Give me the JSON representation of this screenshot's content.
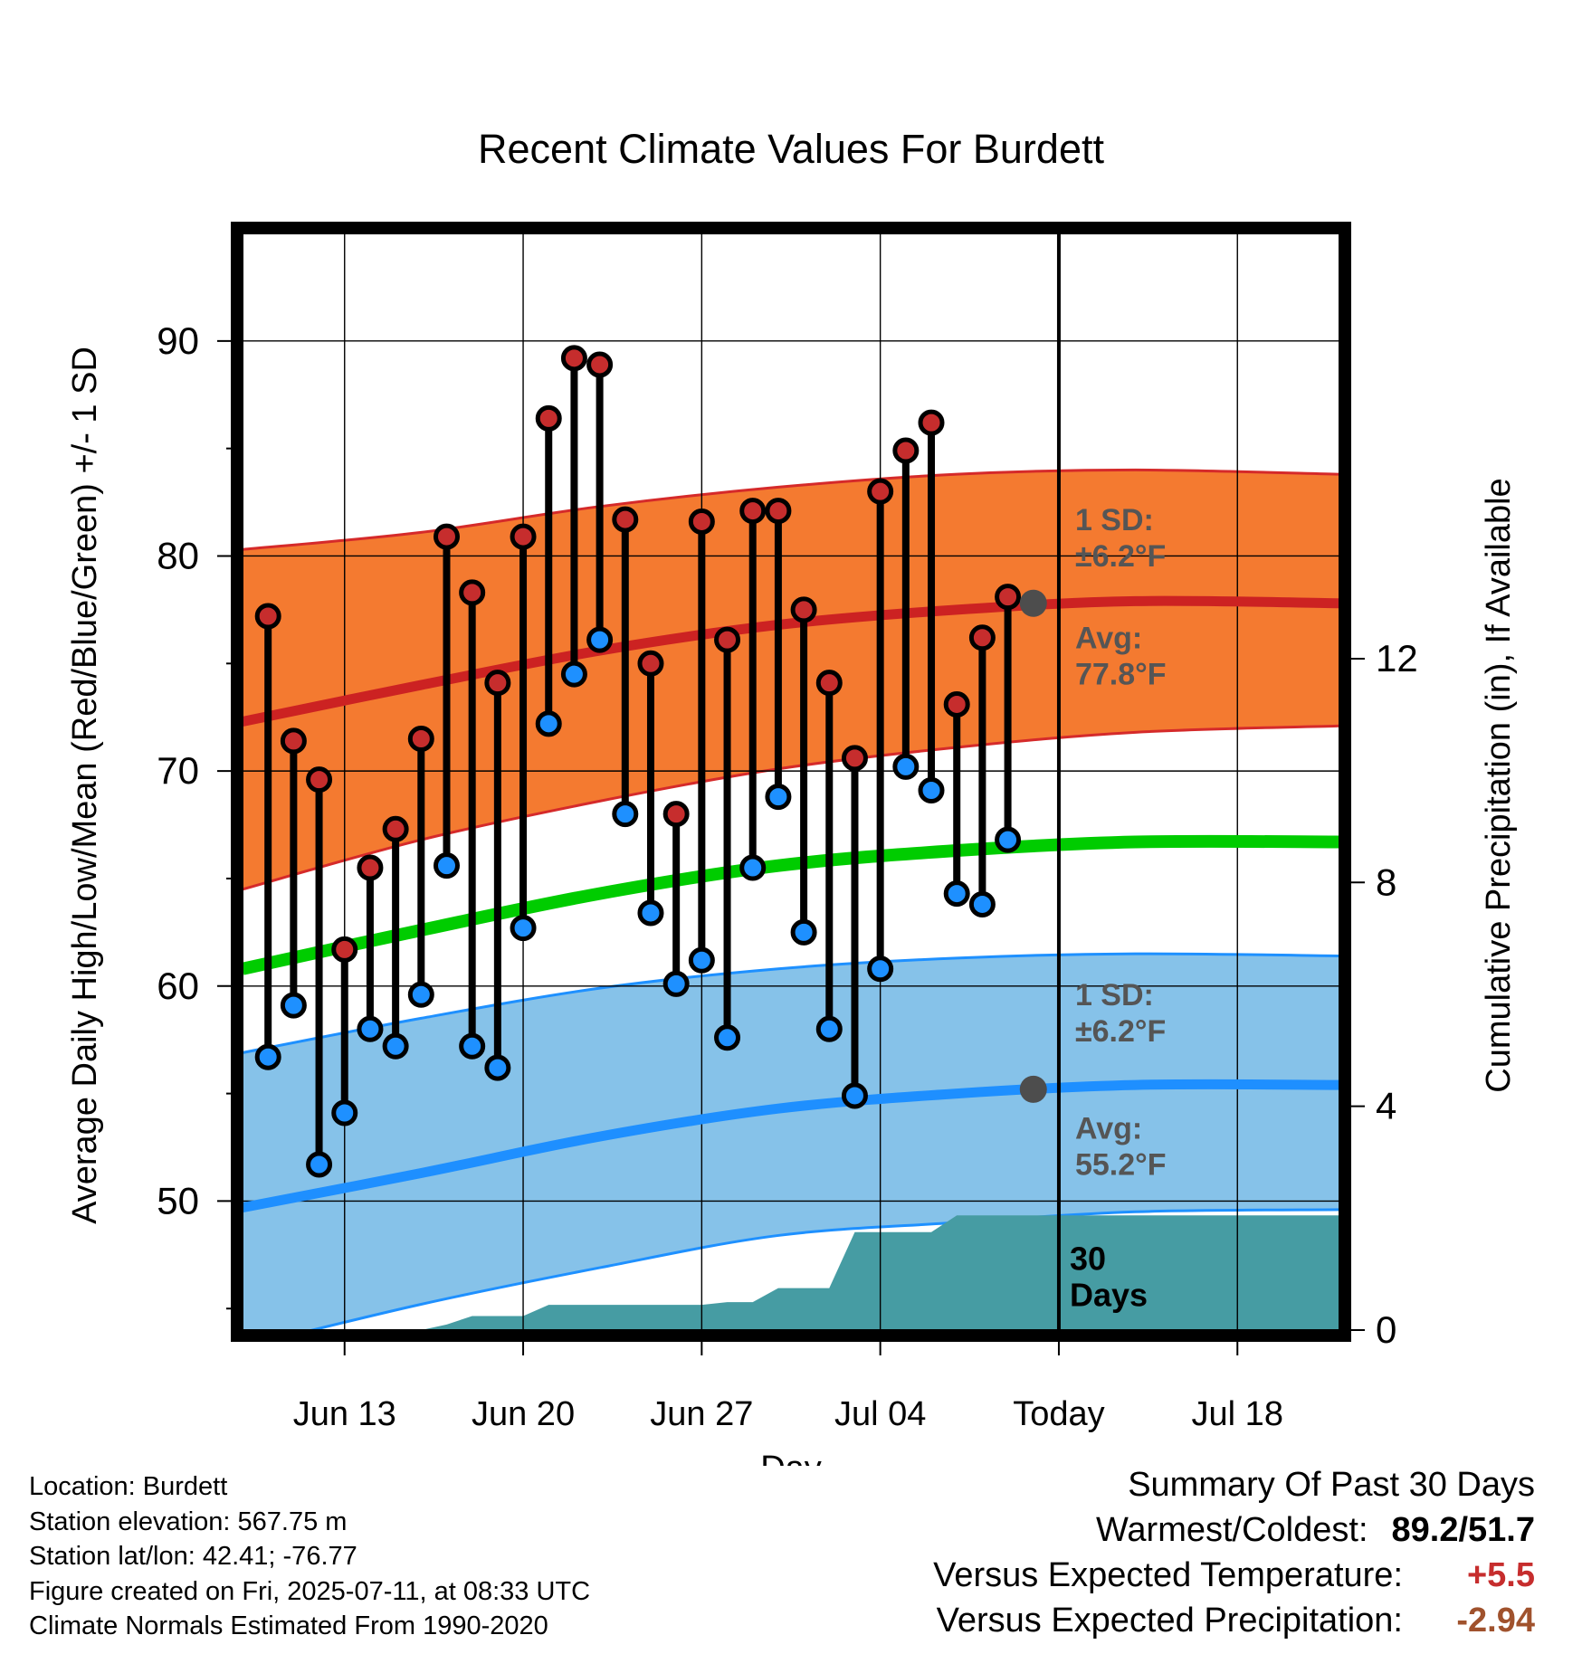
{
  "chart_data": {
    "type": "line",
    "title": "Recent Climate Values For Burdett",
    "xlabel": "Day",
    "ylabel": "Average Daily High/Low/Mean (Red/Blue/Green) +/- 1 SD",
    "y2label": "Cumulative Precipitation (in), If Available",
    "ylim": [
      44,
      95
    ],
    "y2lim": [
      0,
      19.6
    ],
    "yticks": [
      50,
      60,
      70,
      80,
      90
    ],
    "y2ticks": [
      0,
      4,
      8,
      12
    ],
    "x_range_dates": [
      "2025-06-09",
      "2025-07-22"
    ],
    "xticks": [
      {
        "date": "2025-06-13",
        "label": "Jun 13"
      },
      {
        "date": "2025-06-20",
        "label": "Jun 20"
      },
      {
        "date": "2025-06-27",
        "label": "Jun 27"
      },
      {
        "date": "2025-07-04",
        "label": "Jul 04"
      },
      {
        "date": "2025-07-11",
        "label": "Today"
      },
      {
        "date": "2025-07-18",
        "label": "Jul 18"
      }
    ],
    "today": "2025-07-11",
    "grid": true,
    "normals": {
      "dates": [
        "2025-06-09",
        "2025-06-16",
        "2025-06-23",
        "2025-06-30",
        "2025-07-07",
        "2025-07-14",
        "2025-07-22"
      ],
      "high_avg": [
        72.3,
        74.0,
        75.6,
        76.8,
        77.5,
        77.9,
        77.8
      ],
      "high_upper": [
        80.3,
        81.1,
        82.3,
        83.2,
        83.8,
        84.0,
        83.8
      ],
      "high_lower": [
        64.5,
        66.8,
        68.6,
        70.1,
        71.1,
        71.8,
        72.1
      ],
      "mean_avg": [
        60.8,
        62.6,
        64.3,
        65.6,
        66.3,
        66.7,
        66.7
      ],
      "low_avg": [
        49.7,
        51.3,
        53.0,
        54.3,
        55.0,
        55.4,
        55.4
      ],
      "low_upper": [
        56.9,
        58.5,
        59.9,
        60.8,
        61.3,
        61.5,
        61.4
      ],
      "low_lower": [
        43.2,
        45.2,
        46.9,
        48.4,
        49.0,
        49.5,
        49.6
      ]
    },
    "series": [
      {
        "name": "Red",
        "dates": [
          "2025-06-10",
          "2025-06-11",
          "2025-06-12",
          "2025-06-13",
          "2025-06-14",
          "2025-06-15",
          "2025-06-16",
          "2025-06-17",
          "2025-06-18",
          "2025-06-19",
          "2025-06-20",
          "2025-06-21",
          "2025-06-22",
          "2025-06-23",
          "2025-06-24",
          "2025-06-25",
          "2025-06-26",
          "2025-06-27",
          "2025-06-28",
          "2025-06-29",
          "2025-06-30",
          "2025-07-01",
          "2025-07-02",
          "2025-07-03",
          "2025-07-04",
          "2025-07-05",
          "2025-07-06",
          "2025-07-07",
          "2025-07-08",
          "2025-07-09",
          "2025-07-10"
        ],
        "values": [
          77.2,
          71.4,
          69.6,
          61.7,
          65.5,
          67.3,
          71.5,
          80.9,
          78.3,
          74.1,
          80.9,
          86.4,
          89.2,
          88.9,
          81.7,
          75.0,
          68.0,
          81.6,
          76.1,
          82.1,
          82.1,
          77.5,
          74.1,
          70.6,
          83.0,
          84.9,
          86.2,
          73.1,
          76.2,
          78.1,
          77.8
        ]
      },
      {
        "name": "Blue",
        "dates": [
          "2025-06-10",
          "2025-06-11",
          "2025-06-12",
          "2025-06-13",
          "2025-06-14",
          "2025-06-15",
          "2025-06-16",
          "2025-06-17",
          "2025-06-18",
          "2025-06-19",
          "2025-06-20",
          "2025-06-21",
          "2025-06-22",
          "2025-06-23",
          "2025-06-24",
          "2025-06-25",
          "2025-06-26",
          "2025-06-27",
          "2025-06-28",
          "2025-06-29",
          "2025-06-30",
          "2025-07-01",
          "2025-07-02",
          "2025-07-03",
          "2025-07-04",
          "2025-07-05",
          "2025-07-06",
          "2025-07-07",
          "2025-07-08",
          "2025-07-09",
          "2025-07-10"
        ],
        "values": [
          56.7,
          59.1,
          51.7,
          54.1,
          58.0,
          57.2,
          59.6,
          65.6,
          57.2,
          56.2,
          62.7,
          72.2,
          74.5,
          76.1,
          68.0,
          63.4,
          60.1,
          61.2,
          57.6,
          65.5,
          68.8,
          62.5,
          58.0,
          54.9,
          60.8,
          70.2,
          69.1,
          64.3,
          63.8,
          66.8,
          55.2
        ]
      }
    ],
    "precip_cumulative": {
      "dates": [
        "2025-06-09",
        "2025-06-16",
        "2025-06-17",
        "2025-06-18",
        "2025-06-20",
        "2025-06-21",
        "2025-06-22",
        "2025-06-27",
        "2025-06-28",
        "2025-06-29",
        "2025-06-30",
        "2025-07-01",
        "2025-07-02",
        "2025-07-03",
        "2025-07-04",
        "2025-07-06",
        "2025-07-07",
        "2025-07-22"
      ],
      "values": [
        0,
        0,
        0.1,
        0.25,
        0.25,
        0.45,
        0.45,
        0.45,
        0.5,
        0.5,
        0.75,
        0.75,
        0.75,
        1.75,
        1.75,
        1.75,
        2.05,
        2.05
      ]
    },
    "annotations": {
      "high_sd": "1 SD:\n±6.2°F",
      "high_avg": "Avg:\n77.8°F",
      "low_sd": "1 SD:\n±6.2°F",
      "low_avg": "Avg:\n55.2°F",
      "days": "30\nDays"
    },
    "colors": {
      "high_band": "#f47a30",
      "high_edge": "#d52a2a",
      "high_line": "#cc2222",
      "mean_line": "#00cc00",
      "low_band": "#86c2e9",
      "low_edge": "#1e90ff",
      "low_line": "#1e8fff",
      "precip": "#469ca3",
      "high_point": "#c62d2d",
      "low_point": "#1e90ff",
      "today_marker": "#4d4d4d",
      "annotation": "#555555"
    }
  },
  "info": {
    "location": "Location: Burdett",
    "elevation": "Station elevation: 567.75 m",
    "latlon": "Station lat/lon: 42.41; -76.77",
    "created": "Figure created on Fri, 2025-07-11, at 08:33 UTC",
    "normals": "Climate Normals Estimated From 1990-2020"
  },
  "summary": {
    "title": "Summary Of Past 30 Days",
    "warm_label": "Warmest/Coldest:",
    "warm_value": "89.2/51.7",
    "temp_label": "Versus Expected Temperature:",
    "temp_value": "+5.5",
    "precip_label": "Versus Expected Precipitation:",
    "precip_value": "-2.94"
  }
}
